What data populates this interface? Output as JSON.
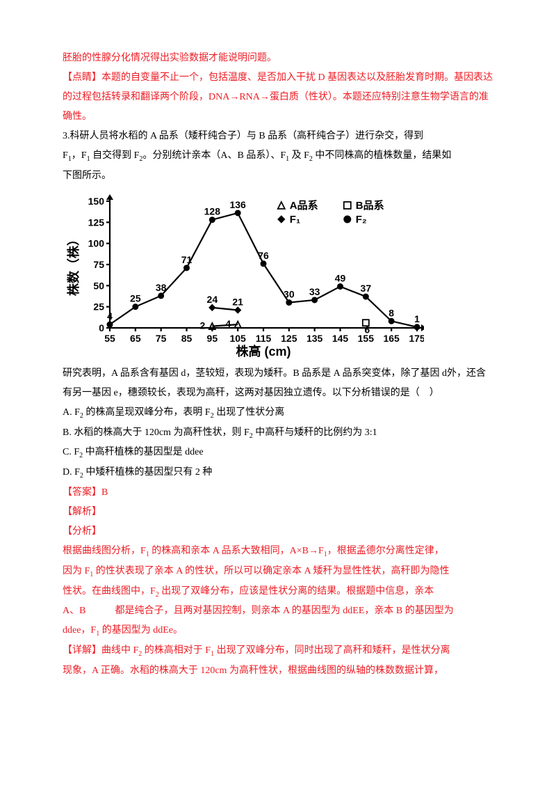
{
  "paragraphs": {
    "p1": "胚胎的性腺分化情况得出实验数据才能说明问题。",
    "p2": "【点睛】本题的自变量不止一个，包括温度、是否加入干扰 D 基因表达以及胚胎发育时期。基因表达的过程包括转录和翻译两个阶段，DNA→RNA→蛋白质（性状）。本题还应特别注意生物学语言的准确性。",
    "q_intro1": "3.科研人员将水稻的 A 品系（矮秆纯合子）与 B 品系（高秆纯合子）进行杂交，得到",
    "q_intro2_a": "F",
    "q_intro2_b": "，F",
    "q_intro2_c": " 自交得到 F",
    "q_intro2_d": "。分别统计亲本（A、B 品系）、F",
    "q_intro2_e": " 及 F",
    "q_intro2_f": " 中不同株高的植株数量，结果如",
    "q_intro3": "下图所示。",
    "after_chart": "研究表明，A 品系含有基因 d，茎较短，表现为矮秆。B 品系是 A 品系突变体，除了基因 d外，还含有另一基因 e，穗颈较长，表现为高秆，这两对基因独立遗传。以下分析错误的是（　）",
    "optA_a": "A. F",
    "optA_b": " 的株高呈现双峰分布，表明 F",
    "optA_c": " 出现了性状分离",
    "optB_a": "B. 水稻的株高大于 120cm 为高秆性状，则 F",
    "optB_b": " 中高秆与矮秆的比例约为 3:1",
    "optC_a": "C. F",
    "optC_b": " 中高秆植株的基因型是 ddee",
    "optD_a": "D. F",
    "optD_b": " 中矮秆植株的基因型只有 2 种",
    "ans": "【答案】B",
    "jiexi": "【解析】",
    "fenxi": "【分析】",
    "an1_a": "根据曲线图分析，F",
    "an1_b": " 的株高和亲本 A 品系大致相同，A×B→F",
    "an1_c": "，根据孟德尔分离性定律，",
    "an2_a": "因为 F",
    "an2_b": " 的性状表现了亲本 A 的性状，所以可以确定亲本 A 矮秆为显性性状，高秆即为隐性",
    "an3_a": "性状。在曲线图中，F",
    "an3_b": " 出现了双峰分布，应该是性状分离的结果。根据题中信息，亲本",
    "an4": "A、B　　　都是纯合子，且两对基因控制，则亲本 A 的基因型为 ddEE，亲本 B 的基因型为",
    "an5_a": "ddee，F",
    "an5_b": " 的基因型为 ddEe。",
    "detail_a": "【详解】曲线中 F",
    "detail_b": " 的株高相对于 F",
    "detail_c": " 出现了双峰分布，同时出现了高秆和矮秆，是性状分离",
    "detail2": "现象，A 正确。水稻的株高大于 120cm 为高秆性状，根据曲线图的纵轴的株数数据计算，"
  },
  "chart": {
    "x_label": "株高 (cm)",
    "y_label": "株数（株）",
    "x_ticks": [
      55,
      65,
      75,
      85,
      95,
      105,
      115,
      125,
      135,
      145,
      155,
      165,
      175
    ],
    "y_ticks": [
      0,
      25,
      50,
      75,
      100,
      125,
      150
    ],
    "legend": {
      "A": "A品系",
      "B": "B品系",
      "F1": "F₁",
      "F2": "F₂"
    },
    "series": {
      "F2": {
        "x": [
          55,
          65,
          75,
          85,
          95,
          105,
          115,
          125,
          135,
          145,
          155,
          165,
          175
        ],
        "y": [
          4,
          25,
          38,
          71,
          128,
          136,
          76,
          30,
          33,
          49,
          37,
          8,
          1
        ],
        "labels": [
          "4",
          "25",
          "38",
          "71",
          "128",
          "136",
          "76",
          "30",
          "33",
          "49",
          "37",
          "8",
          "1"
        ],
        "marker": "circle_filled",
        "color": "#000000"
      },
      "F1": {
        "x": [
          95,
          105
        ],
        "y": [
          24,
          21
        ],
        "labels": [
          "24",
          "21"
        ],
        "marker": "diamond_filled",
        "color": "#000000"
      },
      "A": {
        "x": [
          95,
          105
        ],
        "y": [
          2,
          4
        ],
        "labels": [
          "2",
          "4"
        ],
        "marker": "triangle_open",
        "color": "#000000"
      },
      "B": {
        "x": [
          155
        ],
        "y": [
          6
        ],
        "labels": [
          "6"
        ],
        "marker": "square_open",
        "color": "#000000"
      }
    },
    "plot": {
      "stroke_width": 2.2,
      "axis_stroke": "#000000",
      "background": "#ffffff",
      "arrow_size": 7
    }
  }
}
